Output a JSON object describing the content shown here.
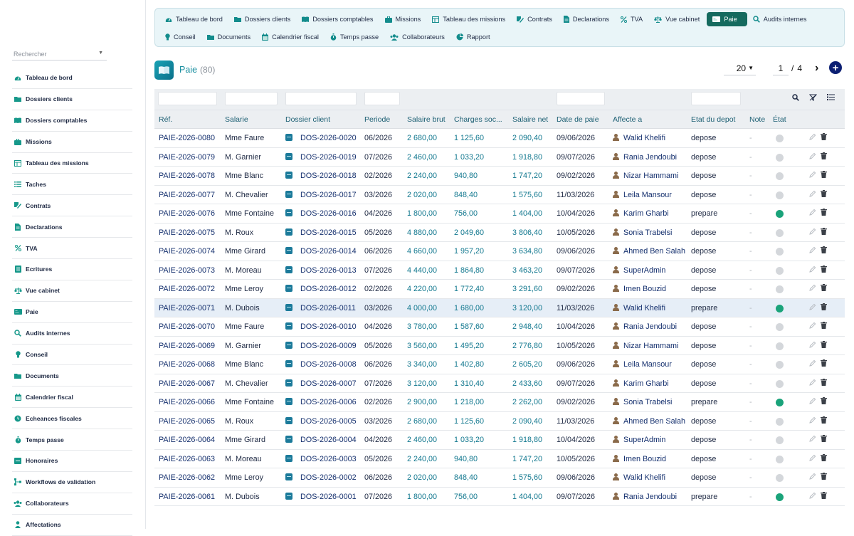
{
  "sidebar": {
    "search_placeholder": "Rechercher",
    "items": [
      {
        "label": "Tableau de bord",
        "icon": "dashboard-icon"
      },
      {
        "label": "Dossiers clients",
        "icon": "folder-icon"
      },
      {
        "label": "Dossiers comptables",
        "icon": "book-icon"
      },
      {
        "label": "Missions",
        "icon": "briefcase-icon"
      },
      {
        "label": "Tableau des missions",
        "icon": "table-icon"
      },
      {
        "label": "Taches",
        "icon": "list-icon"
      },
      {
        "label": "Contrats",
        "icon": "contract-icon"
      },
      {
        "label": "Declarations",
        "icon": "document-icon"
      },
      {
        "label": "TVA",
        "icon": "percent-icon"
      },
      {
        "label": "Ecritures",
        "icon": "ledger-icon"
      },
      {
        "label": "Vue cabinet",
        "icon": "scale-icon"
      },
      {
        "label": "Paie",
        "icon": "money-icon"
      },
      {
        "label": "Audits internes",
        "icon": "search-icon"
      },
      {
        "label": "Conseil",
        "icon": "lightbulb-icon"
      },
      {
        "label": "Documents",
        "icon": "folder-icon"
      },
      {
        "label": "Calendrier fiscal",
        "icon": "calendar-icon"
      },
      {
        "label": "Echeances fiscales",
        "icon": "clock-icon"
      },
      {
        "label": "Temps passe",
        "icon": "stopwatch-icon"
      },
      {
        "label": "Honoraires",
        "icon": "fee-icon"
      },
      {
        "label": "Workflows de validation",
        "icon": "workflow-icon"
      },
      {
        "label": "Collaborateurs",
        "icon": "users-icon"
      },
      {
        "label": "Affectations",
        "icon": "user-icon"
      }
    ]
  },
  "topnav": {
    "row1": [
      {
        "label": "Tableau de bord",
        "icon": "dashboard-icon"
      },
      {
        "label": "Dossiers clients",
        "icon": "folder-icon"
      },
      {
        "label": "Dossiers comptables",
        "icon": "book-icon"
      },
      {
        "label": "Missions",
        "icon": "briefcase-icon"
      },
      {
        "label": "Tableau des missions",
        "icon": "table-icon"
      },
      {
        "label": "Contrats",
        "icon": "contract-icon"
      },
      {
        "label": "Declarations",
        "icon": "document-icon"
      },
      {
        "label": "TVA",
        "icon": "percent-icon"
      },
      {
        "label": "Vue cabinet",
        "icon": "scale-icon"
      },
      {
        "label": "Paie",
        "icon": "money-icon",
        "active": true
      },
      {
        "label": "Audits internes",
        "icon": "search-icon"
      }
    ],
    "row2": [
      {
        "label": "Conseil",
        "icon": "lightbulb-icon"
      },
      {
        "label": "Documents",
        "icon": "folder-icon"
      },
      {
        "label": "Calendrier fiscal",
        "icon": "calendar-icon"
      },
      {
        "label": "Temps passe",
        "icon": "stopwatch-icon"
      },
      {
        "label": "Collaborateurs",
        "icon": "users-icon"
      },
      {
        "label": "Rapport",
        "icon": "chart-pie-icon"
      }
    ]
  },
  "page": {
    "title": "Paie",
    "count": "(80)",
    "page_size": "20",
    "current_page": "1",
    "page_sep": "/",
    "total_pages": "4",
    "accent": "#1a8fa0"
  },
  "table": {
    "columns": [
      "Réf.",
      "Salarie",
      "Dossier client",
      "Periode",
      "Salaire brut",
      "Charges soc...",
      "Salaire net",
      "Date de paie",
      "Affecte a",
      "Etat du depot",
      "Note",
      "État"
    ],
    "rows": [
      {
        "ref": "PAIE-2026-0080",
        "salarie": "Mme Faure",
        "dossier": "DOS-2026-0020",
        "periode": "06/2026",
        "brut": "2 680,00",
        "charges": "1 125,60",
        "net": "2 090,40",
        "date": "09/06/2026",
        "affecte": "Walid Khelifi",
        "depot": "depose",
        "note": "-",
        "active": false
      },
      {
        "ref": "PAIE-2026-0079",
        "salarie": "M. Garnier",
        "dossier": "DOS-2026-0019",
        "periode": "07/2026",
        "brut": "2 460,00",
        "charges": "1 033,20",
        "net": "1 918,80",
        "date": "09/07/2026",
        "affecte": "Rania Jendoubi",
        "depot": "depose",
        "note": "-",
        "active": false
      },
      {
        "ref": "PAIE-2026-0078",
        "salarie": "Mme Blanc",
        "dossier": "DOS-2026-0018",
        "periode": "02/2026",
        "brut": "2 240,00",
        "charges": "940,80",
        "net": "1 747,20",
        "date": "09/02/2026",
        "affecte": "Nizar Hammami",
        "depot": "depose",
        "note": "-",
        "active": false
      },
      {
        "ref": "PAIE-2026-0077",
        "salarie": "M. Chevalier",
        "dossier": "DOS-2026-0017",
        "periode": "03/2026",
        "brut": "2 020,00",
        "charges": "848,40",
        "net": "1 575,60",
        "date": "11/03/2026",
        "affecte": "Leila Mansour",
        "depot": "depose",
        "note": "-",
        "active": false
      },
      {
        "ref": "PAIE-2026-0076",
        "salarie": "Mme Fontaine",
        "dossier": "DOS-2026-0016",
        "periode": "04/2026",
        "brut": "1 800,00",
        "charges": "756,00",
        "net": "1 404,00",
        "date": "10/04/2026",
        "affecte": "Karim Gharbi",
        "depot": "prepare",
        "note": "-",
        "active": true
      },
      {
        "ref": "PAIE-2026-0075",
        "salarie": "M. Roux",
        "dossier": "DOS-2026-0015",
        "periode": "05/2026",
        "brut": "4 880,00",
        "charges": "2 049,60",
        "net": "3 806,40",
        "date": "10/05/2026",
        "affecte": "Sonia Trabelsi",
        "depot": "depose",
        "note": "-",
        "active": false
      },
      {
        "ref": "PAIE-2026-0074",
        "salarie": "Mme Girard",
        "dossier": "DOS-2026-0014",
        "periode": "06/2026",
        "brut": "4 660,00",
        "charges": "1 957,20",
        "net": "3 634,80",
        "date": "09/06/2026",
        "affecte": "Ahmed Ben Salah",
        "depot": "depose",
        "note": "-",
        "active": false
      },
      {
        "ref": "PAIE-2026-0073",
        "salarie": "M. Moreau",
        "dossier": "DOS-2026-0013",
        "periode": "07/2026",
        "brut": "4 440,00",
        "charges": "1 864,80",
        "net": "3 463,20",
        "date": "09/07/2026",
        "affecte": "SuperAdmin",
        "depot": "depose",
        "note": "-",
        "active": false
      },
      {
        "ref": "PAIE-2026-0072",
        "salarie": "Mme Leroy",
        "dossier": "DOS-2026-0012",
        "periode": "02/2026",
        "brut": "4 220,00",
        "charges": "1 772,40",
        "net": "3 291,60",
        "date": "09/02/2026",
        "affecte": "Imen Bouzid",
        "depot": "depose",
        "note": "-",
        "active": false
      },
      {
        "ref": "PAIE-2026-0071",
        "salarie": "M. Dubois",
        "dossier": "DOS-2026-0011",
        "periode": "03/2026",
        "brut": "4 000,00",
        "charges": "1 680,00",
        "net": "3 120,00",
        "date": "11/03/2026",
        "affecte": "Walid Khelifi",
        "depot": "prepare",
        "note": "-",
        "active": true,
        "highlight": true
      },
      {
        "ref": "PAIE-2026-0070",
        "salarie": "Mme Faure",
        "dossier": "DOS-2026-0010",
        "periode": "04/2026",
        "brut": "3 780,00",
        "charges": "1 587,60",
        "net": "2 948,40",
        "date": "10/04/2026",
        "affecte": "Rania Jendoubi",
        "depot": "depose",
        "note": "-",
        "active": false
      },
      {
        "ref": "PAIE-2026-0069",
        "salarie": "M. Garnier",
        "dossier": "DOS-2026-0009",
        "periode": "05/2026",
        "brut": "3 560,00",
        "charges": "1 495,20",
        "net": "2 776,80",
        "date": "10/05/2026",
        "affecte": "Nizar Hammami",
        "depot": "depose",
        "note": "-",
        "active": false
      },
      {
        "ref": "PAIE-2026-0068",
        "salarie": "Mme Blanc",
        "dossier": "DOS-2026-0008",
        "periode": "06/2026",
        "brut": "3 340,00",
        "charges": "1 402,80",
        "net": "2 605,20",
        "date": "09/06/2026",
        "affecte": "Leila Mansour",
        "depot": "depose",
        "note": "-",
        "active": false
      },
      {
        "ref": "PAIE-2026-0067",
        "salarie": "M. Chevalier",
        "dossier": "DOS-2026-0007",
        "periode": "07/2026",
        "brut": "3 120,00",
        "charges": "1 310,40",
        "net": "2 433,60",
        "date": "09/07/2026",
        "affecte": "Karim Gharbi",
        "depot": "depose",
        "note": "-",
        "active": false
      },
      {
        "ref": "PAIE-2026-0066",
        "salarie": "Mme Fontaine",
        "dossier": "DOS-2026-0006",
        "periode": "02/2026",
        "brut": "2 900,00",
        "charges": "1 218,00",
        "net": "2 262,00",
        "date": "09/02/2026",
        "affecte": "Sonia Trabelsi",
        "depot": "prepare",
        "note": "-",
        "active": true
      },
      {
        "ref": "PAIE-2026-0065",
        "salarie": "M. Roux",
        "dossier": "DOS-2026-0005",
        "periode": "03/2026",
        "brut": "2 680,00",
        "charges": "1 125,60",
        "net": "2 090,40",
        "date": "11/03/2026",
        "affecte": "Ahmed Ben Salah",
        "depot": "depose",
        "note": "-",
        "active": false
      },
      {
        "ref": "PAIE-2026-0064",
        "salarie": "Mme Girard",
        "dossier": "DOS-2026-0004",
        "periode": "04/2026",
        "brut": "2 460,00",
        "charges": "1 033,20",
        "net": "1 918,80",
        "date": "10/04/2026",
        "affecte": "SuperAdmin",
        "depot": "depose",
        "note": "-",
        "active": false
      },
      {
        "ref": "PAIE-2026-0063",
        "salarie": "M. Moreau",
        "dossier": "DOS-2026-0003",
        "periode": "05/2026",
        "brut": "2 240,00",
        "charges": "940,80",
        "net": "1 747,20",
        "date": "10/05/2026",
        "affecte": "Imen Bouzid",
        "depot": "depose",
        "note": "-",
        "active": false
      },
      {
        "ref": "PAIE-2026-0062",
        "salarie": "Mme Leroy",
        "dossier": "DOS-2026-0002",
        "periode": "06/2026",
        "brut": "2 020,00",
        "charges": "848,40",
        "net": "1 575,60",
        "date": "09/06/2026",
        "affecte": "Walid Khelifi",
        "depot": "depose",
        "note": "-",
        "active": false
      },
      {
        "ref": "PAIE-2026-0061",
        "salarie": "M. Dubois",
        "dossier": "DOS-2026-0001",
        "periode": "07/2026",
        "brut": "1 800,00",
        "charges": "756,00",
        "net": "1 404,00",
        "date": "09/07/2026",
        "affecte": "Rania Jendoubi",
        "depot": "prepare",
        "note": "-",
        "active": true
      }
    ]
  }
}
